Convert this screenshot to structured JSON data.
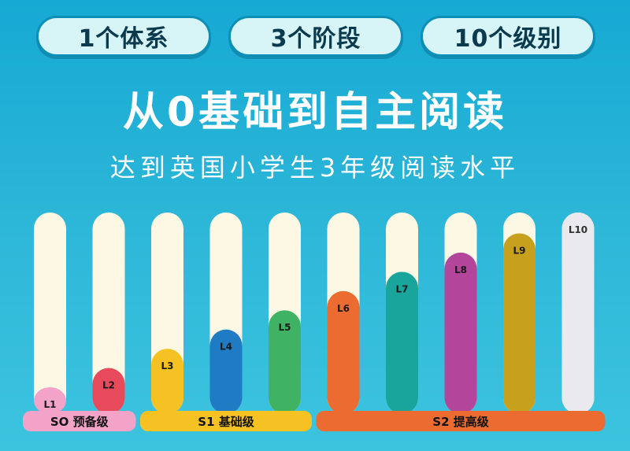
{
  "badges": [
    "1个体系",
    "3个阶段",
    "10个级别"
  ],
  "title": "从0基础到自主阅读",
  "subtitle": "达到英国小学生3年级阅读水平",
  "colors": {
    "track": "#fdf8e4",
    "bars": [
      "#f4a3c8",
      "#e64a5b",
      "#f6c223",
      "#1f7bc4",
      "#3fb363",
      "#ec6b31",
      "#1aa59c",
      "#b3459b",
      "#c7a01e",
      "#e9e9ee"
    ],
    "groups": [
      "#f4a3c8",
      "#f6c223",
      "#ec6b31"
    ]
  },
  "chart_data": {
    "type": "bar",
    "title": "",
    "xlabel": "",
    "ylabel": "",
    "categories": [
      "L1",
      "L2",
      "L3",
      "L4",
      "L5",
      "L6",
      "L7",
      "L8",
      "L9",
      "L10"
    ],
    "values": [
      1,
      2,
      3,
      4,
      5,
      6,
      7,
      8,
      9,
      10
    ],
    "ylim": [
      0,
      10
    ],
    "groups": [
      {
        "label": "SO 预备级",
        "levels": [
          "L1",
          "L2"
        ]
      },
      {
        "label": "S1 基础级",
        "levels": [
          "L3",
          "L4",
          "L5"
        ]
      },
      {
        "label": "S2 提高级",
        "levels": [
          "L6",
          "L7",
          "L8",
          "L9",
          "L10"
        ]
      }
    ]
  }
}
